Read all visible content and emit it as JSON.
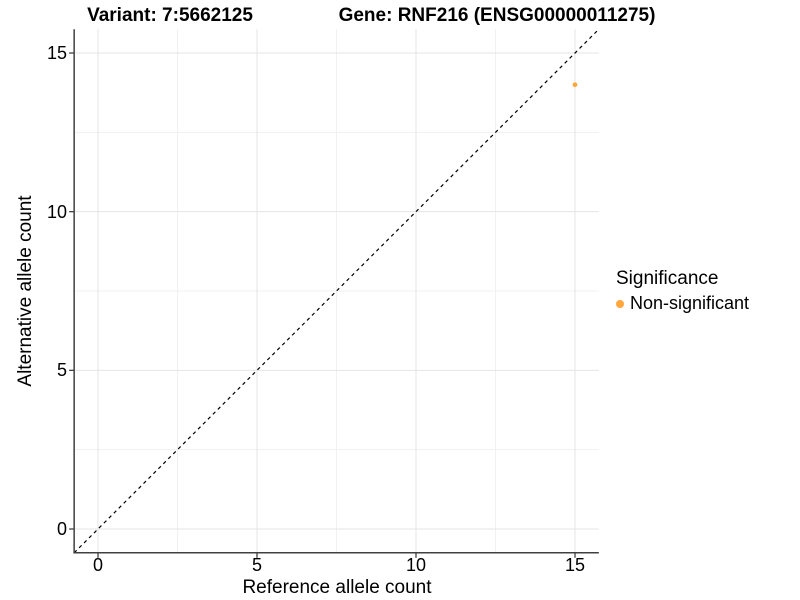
{
  "titles": {
    "variant": "Variant: 7:5662125",
    "gene": "Gene: RNF216 (ENSG00000011275)"
  },
  "chart_data": {
    "type": "scatter",
    "title_left": "Variant: 7:5662125",
    "title_right": "Gene: RNF216 (ENSG00000011275)",
    "xlabel": "Reference allele count",
    "ylabel": "Alternative allele count",
    "xlim": [
      -0.75,
      15.75
    ],
    "ylim": [
      -0.75,
      15.75
    ],
    "x_ticks": [
      0,
      5,
      10,
      15
    ],
    "y_ticks": [
      0,
      5,
      10,
      15
    ],
    "x_minor_ticks": [
      2.5,
      7.5,
      12.5
    ],
    "y_minor_ticks": [
      2.5,
      7.5,
      12.5
    ],
    "grid": true,
    "points": [
      {
        "x": 15,
        "y": 14,
        "series": "Non-significant"
      }
    ],
    "reference_line": {
      "type": "identity-y-equals-x",
      "style": "dashed",
      "color": "#000000"
    },
    "legend": {
      "title": "Significance",
      "position": "right",
      "entries": [
        {
          "label": "Non-significant",
          "color": "#FFA63C"
        }
      ]
    }
  },
  "colors": {
    "background": "#ffffff",
    "axis_line": "#404040",
    "grid_major": "#e4e4e4",
    "grid_minor": "#f1f1f1",
    "tick_mark": "#404040",
    "point_non_significant": "#FFA63C"
  }
}
